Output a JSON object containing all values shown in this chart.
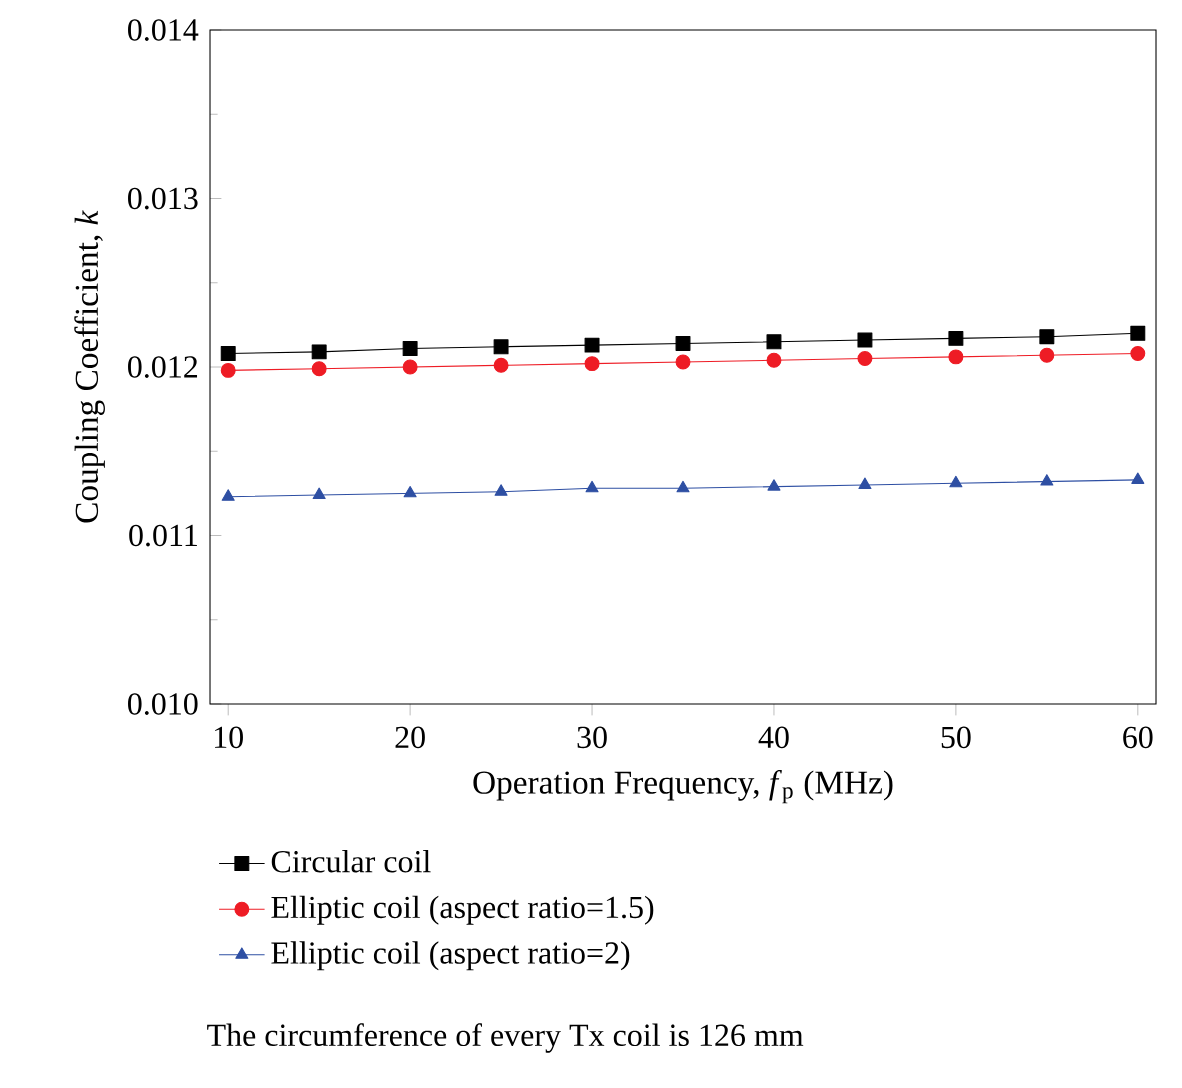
{
  "chart_data": {
    "type": "line",
    "xlabel": "Operation Frequency, *f*$_{p}$ (MHz)",
    "ylabel": "Coupling Coefficient, *k*",
    "x": [
      10,
      15,
      20,
      25,
      30,
      35,
      40,
      45,
      50,
      55,
      60
    ],
    "series": [
      {
        "name": "Circular coil",
        "color": "#000000",
        "marker": "square",
        "values": [
          0.01208,
          0.01209,
          0.01211,
          0.01212,
          0.01213,
          0.01214,
          0.01215,
          0.01216,
          0.01217,
          0.01218,
          0.0122
        ]
      },
      {
        "name": "Elliptic coil (aspect ratio=1.5)",
        "color": "#ee1c25",
        "marker": "circle",
        "values": [
          0.01198,
          0.01199,
          0.012,
          0.01201,
          0.01202,
          0.01203,
          0.01204,
          0.01205,
          0.01206,
          0.01207,
          0.01208
        ]
      },
      {
        "name": "Elliptic coil (aspect ratio=2)",
        "color": "#2e4fa3",
        "marker": "triangle",
        "values": [
          0.01123,
          0.01124,
          0.01125,
          0.01126,
          0.01128,
          0.01128,
          0.01129,
          0.0113,
          0.01131,
          0.01132,
          0.01133
        ]
      }
    ],
    "xlim": [
      9,
      61
    ],
    "ylim": [
      0.01,
      0.014
    ],
    "xticks": [
      10,
      20,
      30,
      40,
      50,
      60
    ],
    "yticks": [
      {
        "value": 0.01,
        "label": "0.010"
      },
      {
        "value": 0.011,
        "label": "0.011"
      },
      {
        "value": 0.012,
        "label": "0.012"
      },
      {
        "value": 0.013,
        "label": "0.013"
      },
      {
        "value": 0.014,
        "label": "0.014"
      }
    ],
    "legend": "bottom",
    "grid": false,
    "line_style": "solid",
    "annotations": [
      "The circumference of every Tx coil is 126 mm"
    ]
  }
}
